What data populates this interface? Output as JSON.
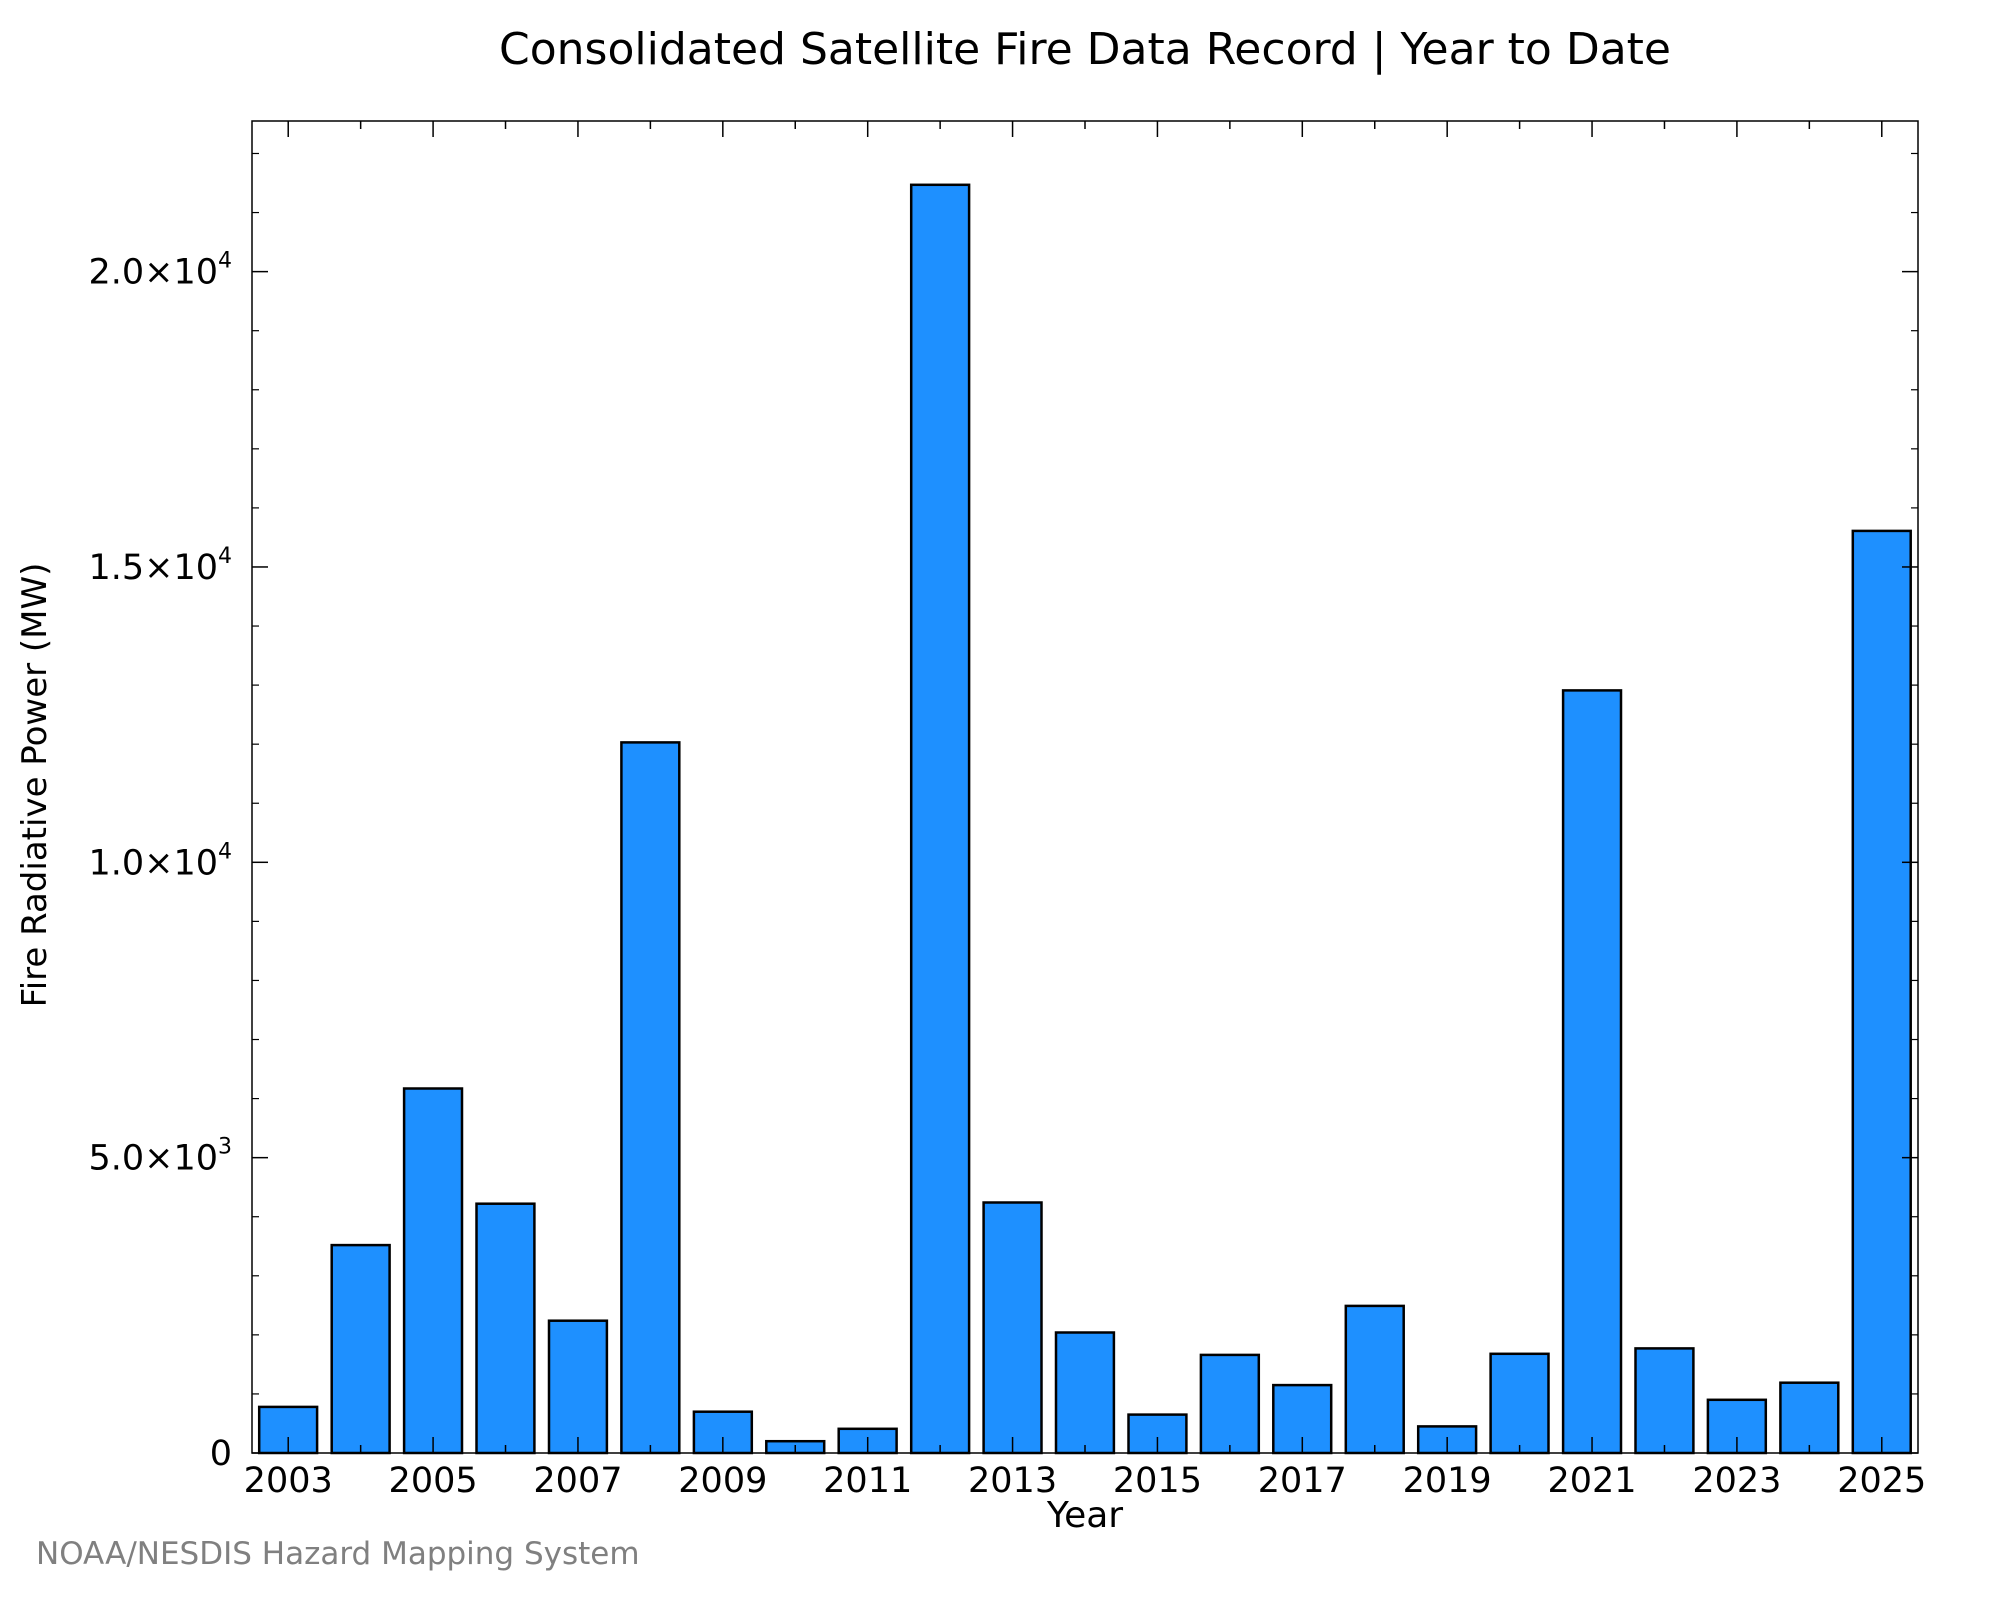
{
  "credit": "NOAA/NESDIS Hazard Mapping System",
  "chart_data": {
    "type": "bar",
    "title": "Consolidated Satellite Fire Data Record | Year to Date",
    "xlabel": "Year",
    "ylabel": "Fire Radiative Power (MW)",
    "categories": [
      2003,
      2004,
      2005,
      2006,
      2007,
      2008,
      2009,
      2010,
      2011,
      2012,
      2013,
      2014,
      2015,
      2016,
      2017,
      2018,
      2019,
      2020,
      2021,
      2022,
      2023,
      2024,
      2025
    ],
    "values": [
      780,
      3520,
      6170,
      4220,
      2240,
      12030,
      700,
      200,
      410,
      21470,
      4240,
      2040,
      650,
      1660,
      1150,
      2490,
      450,
      1680,
      12910,
      1770,
      900,
      1190,
      15610
    ],
    "x_tick_labels": [
      "2003",
      "2005",
      "2007",
      "2009",
      "2011",
      "2013",
      "2015",
      "2017",
      "2019",
      "2021",
      "2023",
      "2025"
    ],
    "y_ticks": [
      {
        "value": 0,
        "mantissa": "0",
        "exponent": ""
      },
      {
        "value": 5000,
        "mantissa": "5.0×10",
        "exponent": "3"
      },
      {
        "value": 10000,
        "mantissa": "1.0×10",
        "exponent": "4"
      },
      {
        "value": 15000,
        "mantissa": "1.5×10",
        "exponent": "4"
      },
      {
        "value": 20000,
        "mantissa": "2.0×10",
        "exponent": "4"
      }
    ],
    "xlim": [
      2002.5,
      2025.5
    ],
    "ylim": [
      0,
      22550
    ],
    "grid": false,
    "legend": "none",
    "colors": {
      "bar_fill": "#1E90FF",
      "bar_stroke": "#000000",
      "axis": "#000000"
    }
  }
}
